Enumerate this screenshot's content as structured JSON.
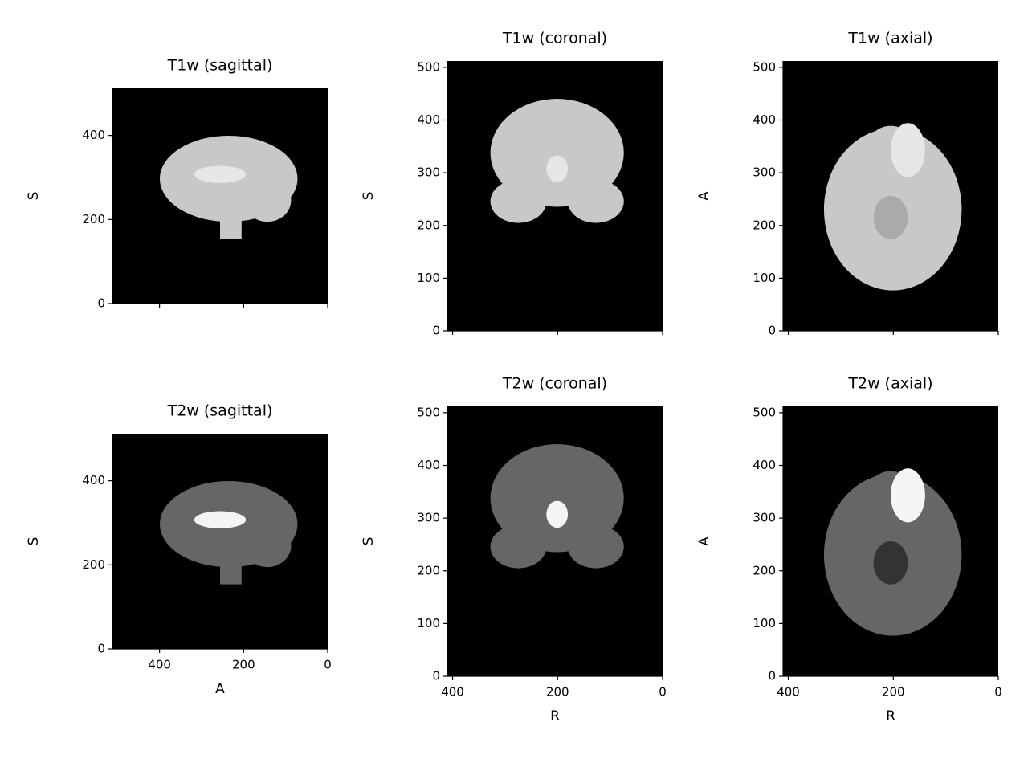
{
  "chart_data": [
    {
      "type": "image",
      "title": "T1w (sagittal)",
      "ylabel": "S",
      "xlim": [
        512,
        0
      ],
      "ylim": [
        0,
        512
      ],
      "xticks": [
        400,
        200,
        0
      ],
      "yticks": [
        0,
        200,
        400
      ]
    },
    {
      "type": "image",
      "title": "T1w (coronal)",
      "ylabel": "S",
      "xlim": [
        410,
        0
      ],
      "ylim": [
        0,
        512
      ],
      "xticks": [
        400,
        200,
        0
      ],
      "yticks": [
        0,
        100,
        200,
        300,
        400,
        500
      ]
    },
    {
      "type": "image",
      "title": "T1w (axial)",
      "ylabel": "A",
      "xlim": [
        410,
        0
      ],
      "ylim": [
        0,
        512
      ],
      "xticks": [
        400,
        200,
        0
      ],
      "yticks": [
        0,
        100,
        200,
        300,
        400,
        500
      ]
    },
    {
      "type": "image",
      "title": "T2w (sagittal)",
      "xlabel": "A",
      "ylabel": "S",
      "xlim": [
        512,
        0
      ],
      "ylim": [
        0,
        512
      ],
      "xticks": [
        400,
        200,
        0
      ],
      "yticks": [
        0,
        200,
        400
      ]
    },
    {
      "type": "image",
      "title": "T2w (coronal)",
      "xlabel": "R",
      "ylabel": "S",
      "xlim": [
        410,
        0
      ],
      "ylim": [
        0,
        512
      ],
      "xticks": [
        400,
        200,
        0
      ],
      "yticks": [
        0,
        100,
        200,
        300,
        400,
        500
      ]
    },
    {
      "type": "image",
      "title": "T2w (axial)",
      "xlabel": "R",
      "ylabel": "A",
      "xlim": [
        410,
        0
      ],
      "ylim": [
        0,
        512
      ],
      "xticks": [
        400,
        200,
        0
      ],
      "yticks": [
        0,
        100,
        200,
        300,
        400,
        500
      ]
    }
  ]
}
